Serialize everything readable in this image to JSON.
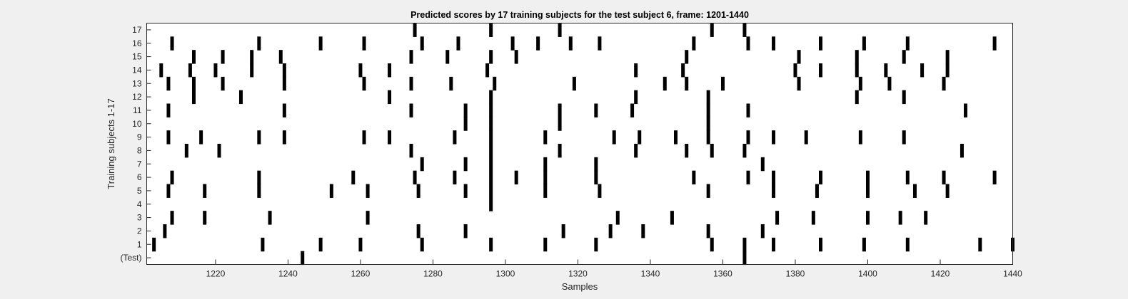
{
  "chart_data": {
    "type": "scatter",
    "title": "Predicted scores by 17 training subjects for the test subject 6, frame: 1201-1440",
    "xlabel": "Samples",
    "ylabel": "Training subjects 1-17",
    "xlim": [
      1201,
      1440
    ],
    "x_ticks": [
      1220,
      1240,
      1260,
      1280,
      1300,
      1320,
      1340,
      1360,
      1380,
      1400,
      1420,
      1440
    ],
    "categories": [
      "(Test)",
      "1",
      "2",
      "3",
      "4",
      "5",
      "6",
      "7",
      "8",
      "9",
      "10",
      "11",
      "12",
      "13",
      "14",
      "15",
      "16",
      "17"
    ],
    "grid": false,
    "legend": "none",
    "mark_color": "#000000",
    "background_color": "#ffffff",
    "series": [
      {
        "row": "(Test)",
        "x": [
          1244,
          1366
        ]
      },
      {
        "row": "1",
        "x": [
          1203,
          1233,
          1249,
          1260,
          1277,
          1296,
          1311,
          1325,
          1357,
          1366,
          1374,
          1387,
          1399,
          1411,
          1431,
          1440
        ]
      },
      {
        "row": "2",
        "x": [
          1206,
          1276,
          1289,
          1316,
          1329,
          1338,
          1356,
          1371
        ]
      },
      {
        "row": "3",
        "x": [
          1208,
          1217,
          1235,
          1262,
          1331,
          1346,
          1375,
          1385,
          1400,
          1409,
          1416
        ]
      },
      {
        "row": "4",
        "x": [
          1296
        ]
      },
      {
        "row": "5",
        "x": [
          1207,
          1217,
          1232,
          1252,
          1262,
          1276,
          1289,
          1296,
          1311,
          1326,
          1356,
          1374,
          1386,
          1400,
          1413,
          1422
        ]
      },
      {
        "row": "6",
        "x": [
          1208,
          1232,
          1258,
          1275,
          1286,
          1296,
          1303,
          1311,
          1325,
          1352,
          1367,
          1374,
          1387,
          1400,
          1411,
          1421,
          1435
        ]
      },
      {
        "row": "7",
        "x": [
          1277,
          1289,
          1296,
          1311,
          1325,
          1371
        ]
      },
      {
        "row": "8",
        "x": [
          1212,
          1221,
          1274,
          1296,
          1315,
          1336,
          1350,
          1357,
          1366,
          1426
        ]
      },
      {
        "row": "9",
        "x": [
          1207,
          1216,
          1232,
          1239,
          1261,
          1268,
          1286,
          1296,
          1311,
          1330,
          1337,
          1347,
          1356,
          1367,
          1374,
          1383,
          1398,
          1410
        ]
      },
      {
        "row": "10",
        "x": [
          1289,
          1296,
          1315,
          1356
        ]
      },
      {
        "row": "11",
        "x": [
          1207,
          1239,
          1274,
          1289,
          1296,
          1315,
          1325,
          1335,
          1356,
          1367,
          1427
        ]
      },
      {
        "row": "12",
        "x": [
          1214,
          1227,
          1268,
          1296,
          1336,
          1356,
          1397,
          1410
        ]
      },
      {
        "row": "13",
        "x": [
          1207,
          1214,
          1222,
          1239,
          1261,
          1274,
          1285,
          1297,
          1319,
          1344,
          1350,
          1360,
          1381,
          1398,
          1406,
          1421
        ]
      },
      {
        "row": "14",
        "x": [
          1205,
          1213,
          1220,
          1230,
          1239,
          1260,
          1268,
          1295,
          1336,
          1349,
          1380,
          1387,
          1397,
          1405,
          1415,
          1422
        ]
      },
      {
        "row": "15",
        "x": [
          1214,
          1222,
          1230,
          1238,
          1274,
          1284,
          1296,
          1303,
          1350,
          1381,
          1397,
          1410,
          1422
        ]
      },
      {
        "row": "16",
        "x": [
          1208,
          1232,
          1249,
          1261,
          1277,
          1287,
          1302,
          1309,
          1318,
          1326,
          1352,
          1367,
          1374,
          1387,
          1399,
          1411,
          1435
        ]
      },
      {
        "row": "17",
        "x": [
          1275,
          1296,
          1315,
          1357,
          1366
        ]
      }
    ]
  }
}
